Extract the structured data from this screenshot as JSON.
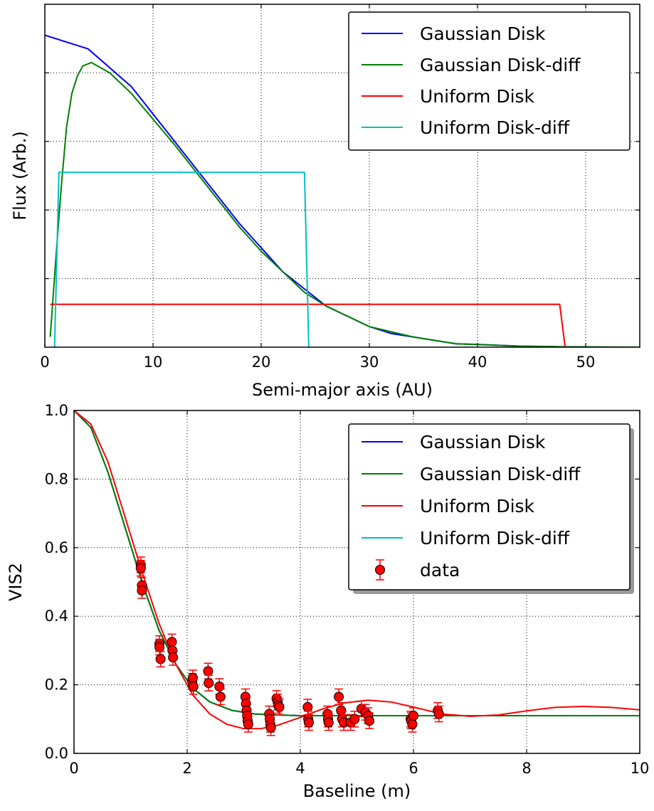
{
  "chart_data": [
    {
      "type": "line",
      "title": "",
      "xlabel": "Semi-major axis (AU)",
      "ylabel": "Flux (Arb.)",
      "xlim": [
        0,
        55
      ],
      "ylim": [
        0,
        1.0
      ],
      "xticks": [
        0,
        10,
        20,
        30,
        40,
        50
      ],
      "xtick_labels": [
        "0",
        "10",
        "20",
        "30",
        "40",
        "50"
      ],
      "yticks": [
        0.2,
        0.4,
        0.6,
        0.8
      ],
      "ytick_labels_visible": false,
      "grid": true,
      "legend_position": "top-right",
      "series": [
        {
          "name": "Gaussian Disk",
          "color": "#0000ff",
          "x": [
            0,
            4,
            8,
            12,
            14,
            16,
            18,
            20,
            22,
            24,
            26,
            28,
            30,
            32,
            34,
            36,
            38,
            40,
            44,
            48,
            52,
            55
          ],
          "y": [
            0.91,
            0.87,
            0.76,
            0.6,
            0.52,
            0.44,
            0.36,
            0.29,
            0.22,
            0.17,
            0.12,
            0.09,
            0.06,
            0.04,
            0.03,
            0.02,
            0.01,
            0.008,
            0.003,
            0.001,
            0,
            0
          ]
        },
        {
          "name": "Gaussian Disk-diff",
          "color": "#008000",
          "x": [
            0.5,
            1,
            1.5,
            2,
            2.5,
            3,
            3.5,
            4.3,
            6,
            8,
            12,
            14,
            16,
            18,
            20,
            22,
            24,
            26,
            28,
            30,
            34,
            38,
            44,
            48,
            55
          ],
          "y": [
            0.03,
            0.25,
            0.46,
            0.64,
            0.74,
            0.79,
            0.82,
            0.83,
            0.8,
            0.74,
            0.59,
            0.51,
            0.43,
            0.35,
            0.28,
            0.22,
            0.16,
            0.12,
            0.09,
            0.06,
            0.03,
            0.01,
            0.003,
            0.001,
            0
          ]
        },
        {
          "name": "Uniform Disk",
          "color": "#ff0000",
          "x": [
            0.5,
            47.6,
            48.1
          ],
          "y": [
            0.125,
            0.125,
            0
          ]
        },
        {
          "name": "Uniform Disk-diff",
          "color": "#00bfbf",
          "x": [
            0.9,
            1.3,
            24.0,
            24.4
          ],
          "y": [
            0,
            0.51,
            0.51,
            0
          ]
        }
      ]
    },
    {
      "type": "line",
      "title": "",
      "xlabel": "Baseline (m)",
      "ylabel": "VIS2",
      "xlim": [
        0,
        10
      ],
      "ylim": [
        0,
        1.0
      ],
      "xticks": [
        0,
        2,
        4,
        6,
        8,
        10
      ],
      "xtick_labels": [
        "0",
        "2",
        "4",
        "6",
        "8",
        "10"
      ],
      "yticks": [
        0,
        0.2,
        0.4,
        0.6,
        0.8,
        1.0
      ],
      "ytick_labels": [
        "0.0",
        "0.2",
        "0.4",
        "0.6",
        "0.8",
        "1.0"
      ],
      "grid": true,
      "legend_position": "top-right",
      "series": [
        {
          "name": "Gaussian Disk",
          "color": "#0000ff",
          "x": [
            0,
            0.3,
            0.6,
            0.9,
            1.2,
            1.5,
            1.8,
            2.1,
            2.4,
            2.8,
            3.2,
            3.6,
            4,
            5,
            6,
            7,
            8,
            9,
            10
          ],
          "y": [
            1.0,
            0.95,
            0.82,
            0.66,
            0.5,
            0.36,
            0.26,
            0.19,
            0.15,
            0.125,
            0.115,
            0.112,
            0.11,
            0.11,
            0.11,
            0.11,
            0.11,
            0.11,
            0.11
          ]
        },
        {
          "name": "Gaussian Disk-diff",
          "color": "#008000",
          "x": [
            0,
            0.3,
            0.6,
            0.9,
            1.2,
            1.5,
            1.8,
            2.1,
            2.4,
            2.8,
            3.2,
            3.6,
            4,
            5,
            6,
            7,
            8,
            9,
            10
          ],
          "y": [
            1.0,
            0.95,
            0.82,
            0.66,
            0.5,
            0.36,
            0.26,
            0.19,
            0.15,
            0.125,
            0.115,
            0.112,
            0.11,
            0.11,
            0.11,
            0.11,
            0.11,
            0.11,
            0.11
          ]
        },
        {
          "name": "Uniform Disk",
          "color": "#ff0000",
          "x": [
            0,
            0.3,
            0.6,
            0.9,
            1.2,
            1.5,
            1.8,
            2.1,
            2.4,
            2.7,
            3.0,
            3.3,
            3.6,
            4.0,
            4.4,
            4.8,
            5.2,
            5.6,
            6.0,
            6.5,
            7.0,
            7.5,
            8.0,
            8.5,
            9.0,
            9.5,
            10.0
          ],
          "y": [
            1.0,
            0.96,
            0.85,
            0.69,
            0.53,
            0.38,
            0.26,
            0.17,
            0.115,
            0.085,
            0.072,
            0.072,
            0.082,
            0.105,
            0.13,
            0.148,
            0.155,
            0.15,
            0.135,
            0.115,
            0.108,
            0.112,
            0.124,
            0.134,
            0.137,
            0.134,
            0.127
          ]
        },
        {
          "name": "Uniform Disk-diff",
          "color": "#00bfbf",
          "x": [],
          "y": []
        },
        {
          "name": "data",
          "color": "#ff0000",
          "marker": "circle",
          "error_bars": true,
          "x": [
            1.18,
            1.18,
            1.2,
            1.2,
            1.51,
            1.51,
            1.53,
            1.73,
            1.74,
            1.75,
            2.09,
            2.1,
            2.11,
            2.37,
            2.38,
            2.57,
            2.59,
            3.03,
            3.04,
            3.05,
            3.06,
            3.07,
            3.08,
            3.45,
            3.46,
            3.47,
            3.48,
            3.58,
            3.6,
            3.61,
            3.63,
            4.13,
            4.14,
            4.15,
            4.48,
            4.49,
            4.5,
            4.68,
            4.72,
            4.74,
            4.77,
            4.89,
            4.96,
            5.08,
            5.15,
            5.2,
            5.22,
            5.95,
            5.96,
            5.98,
            6.0,
            6.43,
            6.45
          ],
          "y": [
            0.55,
            0.54,
            0.49,
            0.475,
            0.32,
            0.31,
            0.275,
            0.325,
            0.3,
            0.28,
            0.21,
            0.22,
            0.195,
            0.24,
            0.205,
            0.195,
            0.165,
            0.165,
            0.145,
            0.125,
            0.11,
            0.095,
            0.085,
            0.115,
            0.1,
            0.085,
            0.075,
            0.16,
            0.15,
            0.14,
            0.135,
            0.135,
            0.1,
            0.09,
            0.115,
            0.1,
            0.09,
            0.165,
            0.125,
            0.1,
            0.09,
            0.09,
            0.1,
            0.13,
            0.12,
            0.11,
            0.095,
            0.1,
            0.095,
            0.085,
            0.11,
            0.125,
            0.115
          ]
        }
      ]
    }
  ]
}
